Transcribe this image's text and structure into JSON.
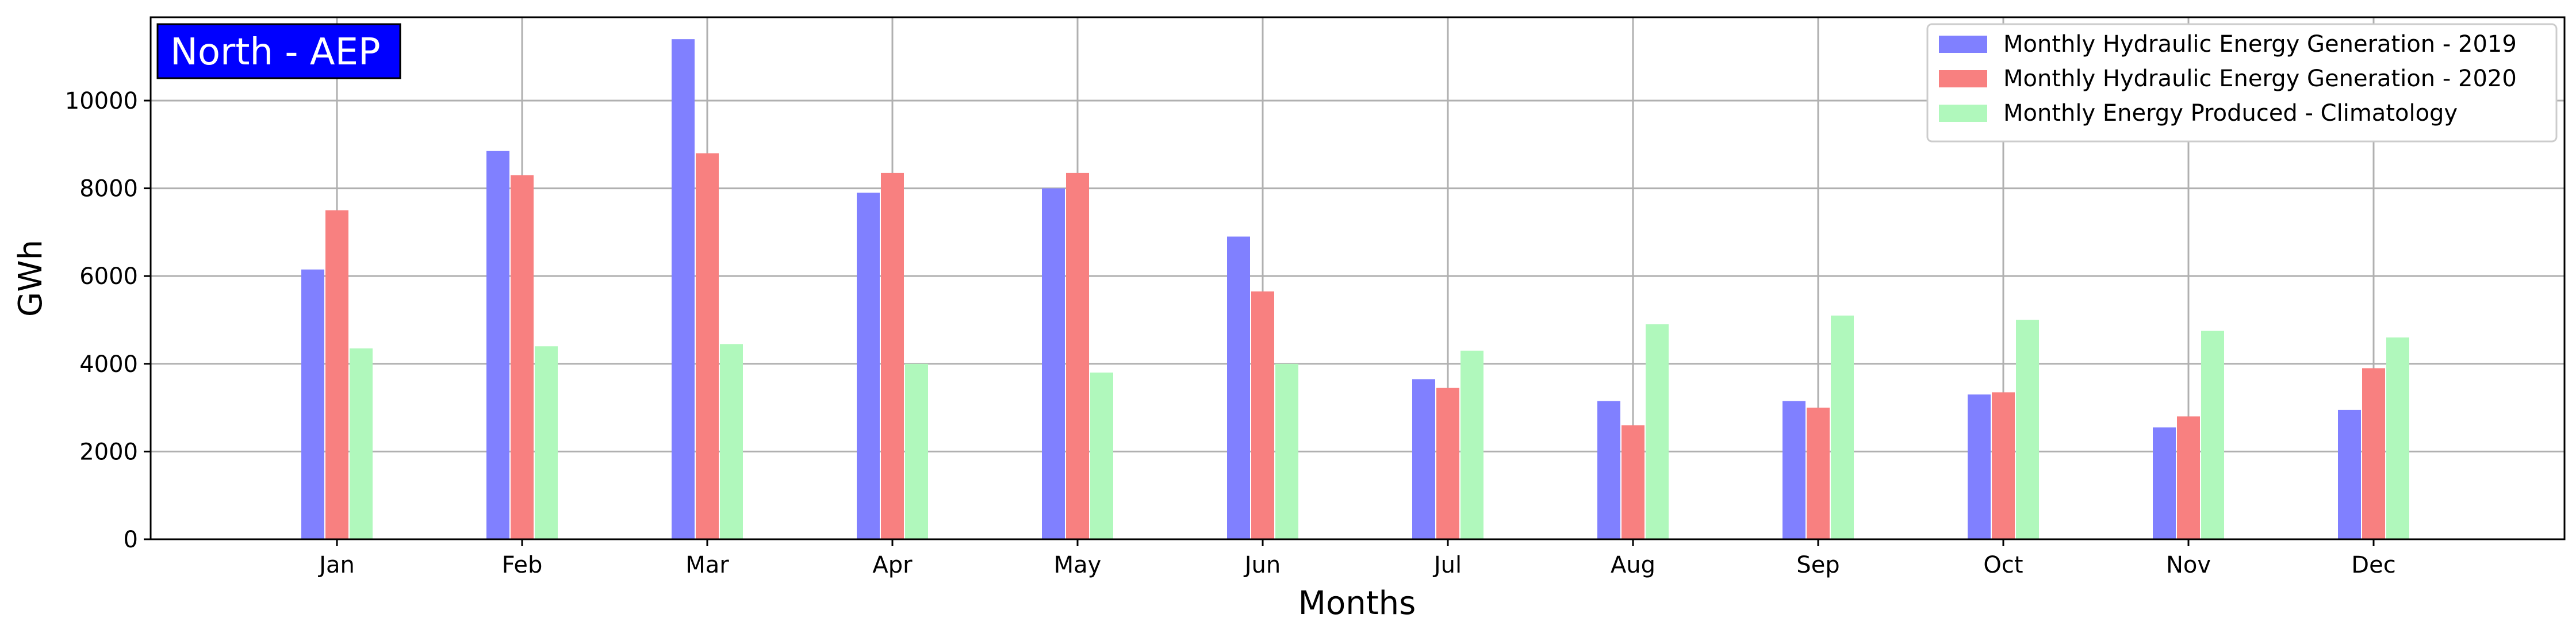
{
  "chart_data": {
    "type": "bar",
    "categories": [
      "Jan",
      "Feb",
      "Mar",
      "Apr",
      "May",
      "Jun",
      "Jul",
      "Aug",
      "Sep",
      "Oct",
      "Nov",
      "Dec"
    ],
    "series": [
      {
        "name": "Monthly Hydraulic Energy Generation - 2019",
        "color": "#8080ff",
        "values": [
          6150,
          8850,
          11400,
          7900,
          8000,
          6900,
          3650,
          3150,
          3150,
          3300,
          2550,
          2950
        ]
      },
      {
        "name": "Monthly Hydraulic Energy Generation - 2020",
        "color": "#f88080",
        "values": [
          7500,
          8300,
          8800,
          8350,
          8350,
          5650,
          3450,
          2600,
          3000,
          3350,
          2800,
          3900
        ]
      },
      {
        "name": "Monthly Energy Produced - Climatology",
        "color": "#b0f8bc",
        "values": [
          4350,
          4400,
          4450,
          4000,
          3800,
          4000,
          4300,
          4900,
          5100,
          5000,
          4750,
          4600
        ]
      }
    ],
    "title_badge": "North - AEP",
    "badge_color": "#0000ff",
    "xlabel": "Months",
    "ylabel": "GWh",
    "ylim": [
      0,
      11900
    ],
    "yticks": [
      0,
      2000,
      4000,
      6000,
      8000,
      10000
    ],
    "grid": true,
    "legend_position": "top-right"
  }
}
